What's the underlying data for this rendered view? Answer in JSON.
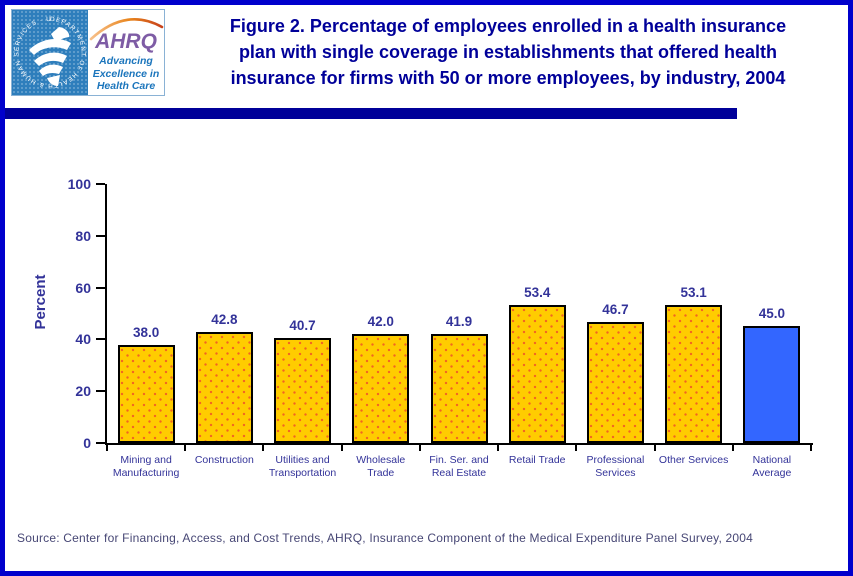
{
  "header": {
    "logo": {
      "seal_text": "DEPARTMENT OF HEALTH & HUMAN SERVICES · USA",
      "brand": "AHRQ",
      "tagline": "Advancing Excellence in Health Care"
    },
    "title_lines": [
      "Figure 2. Percentage of employees enrolled in a health insurance",
      "plan with single coverage in establishments that offered health",
      "insurance for firms with 50 or more employees, by industry, 2004"
    ]
  },
  "chart_data": {
    "type": "bar",
    "title": "Figure 2. Percentage of employees enrolled in a health insurance plan with single coverage in establishments that offered health insurance for firms with 50 or more employees, by industry, 2004",
    "xlabel": "",
    "ylabel": "Percent",
    "ylim": [
      0,
      100
    ],
    "yticks": [
      0,
      20,
      40,
      60,
      80,
      100
    ],
    "grid": false,
    "legend": "none",
    "categories": [
      "Mining and\nManufacturing",
      "Construction",
      "Utilities and\nTransportation",
      "Wholesale\nTrade",
      "Fin. Ser. and\nReal Estate",
      "Retail Trade",
      "Professional\nServices",
      "Other Services",
      "National\nAverage"
    ],
    "values": [
      38.0,
      42.8,
      40.7,
      42.0,
      41.9,
      53.4,
      46.7,
      53.1,
      45.0
    ],
    "value_label_format": "one_decimal",
    "highlight_index": 8,
    "colors": {
      "bar": "#FFCC00",
      "bar_dot": "#F26522",
      "bar_border": "#000000",
      "highlight": "#3366FF",
      "axis": "#000000",
      "label_text": "#333399"
    }
  },
  "colors": {
    "page_border": "#0000CC",
    "separator_bar": "#000099",
    "title_text": "#000099",
    "source_text": "#474775",
    "seal_blue": "#2E7EBC",
    "ahrq_purple": "#7E5CA5",
    "tagline_blue": "#1B75BC",
    "swoosh_orange": "#E8841C"
  },
  "footer": {
    "source": "Source: Center for Financing, Access, and Cost Trends, AHRQ, Insurance Component of the Medical Expenditure Panel Survey, 2004"
  }
}
